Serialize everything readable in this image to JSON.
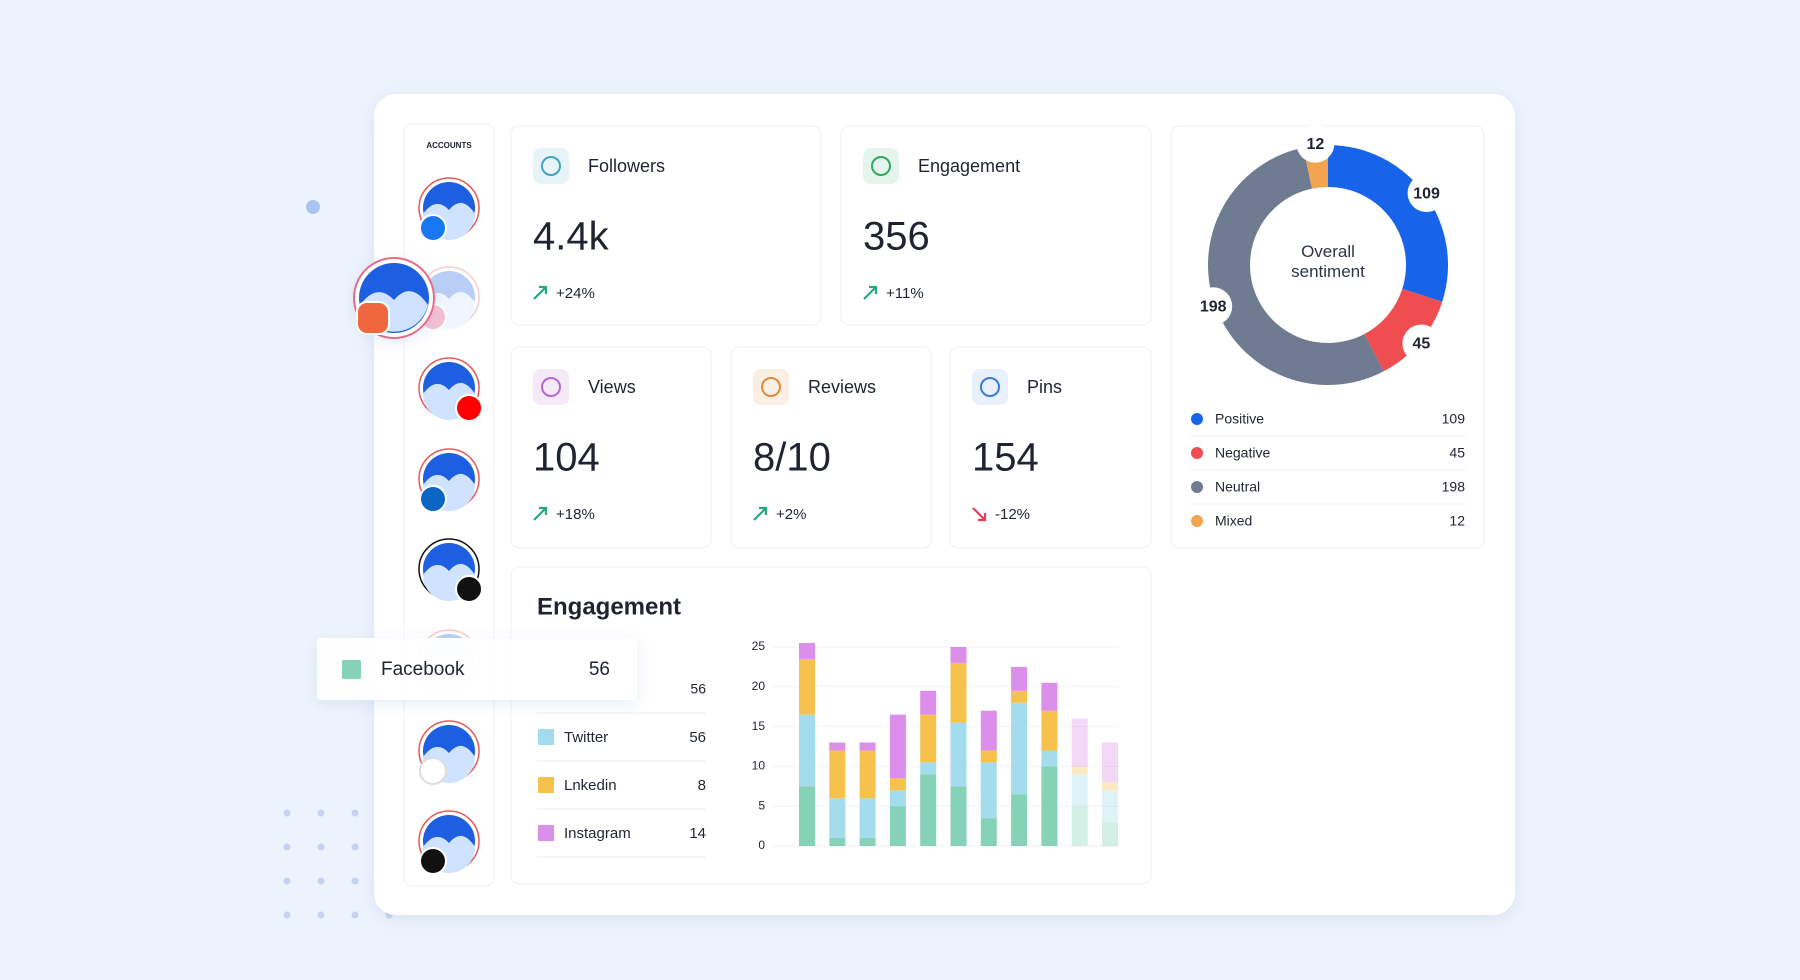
{
  "accounts_label": "ACCOUNTS",
  "stats": [
    {
      "label": "Followers",
      "value": "4.4k",
      "change": "+24%"
    },
    {
      "label": "Engagement",
      "value": "356",
      "change": "+11%"
    },
    {
      "label": "Views",
      "value": "104",
      "change": "+18%"
    },
    {
      "label": "Reviews",
      "value": "8/10",
      "change": "+2%"
    },
    {
      "label": "Pins",
      "value": "154",
      "change": "-12%"
    }
  ],
  "chart_data": [
    {
      "type": "pie",
      "donut": true,
      "title": "Overall sentiment",
      "categories": [
        "Positive",
        "Negative",
        "Neutral",
        "Mixed"
      ],
      "values": [
        109,
        45,
        198,
        12
      ],
      "colors": [
        "#1764ea",
        "#ef4d50",
        "#6e7b90",
        "#f2a450"
      ]
    },
    {
      "type": "bar",
      "stacked": true,
      "title": "Engagement",
      "categories": [
        null,
        null,
        null,
        null,
        null,
        null,
        null,
        null,
        null,
        null,
        null
      ],
      "series": [
        {
          "name": "Facebook",
          "color": "#86d2b6",
          "total": 56,
          "values": [
            7.5,
            1,
            1,
            5,
            9,
            7.5,
            3.5,
            6.5,
            10,
            5,
            3
          ]
        },
        {
          "name": "Twitter",
          "color": "#a3dcec",
          "total": 56,
          "values": [
            9,
            5,
            5,
            2,
            1.5,
            8,
            7,
            11.5,
            2,
            4,
            4
          ]
        },
        {
          "name": "Lnkedin",
          "color": "#f6c24c",
          "total": 8,
          "values": [
            7,
            6,
            6,
            1.5,
            6,
            7.5,
            1.5,
            1.5,
            5,
            1,
            1
          ]
        },
        {
          "name": "Instagram",
          "color": "#dc8fea",
          "total": 14,
          "values": [
            2,
            1,
            1,
            8,
            3,
            2,
            5,
            3,
            3.5,
            6,
            5
          ]
        }
      ],
      "ylim": [
        0,
        25
      ],
      "yticks": [
        0,
        5,
        10,
        15,
        20,
        25
      ],
      "grid": true
    }
  ]
}
